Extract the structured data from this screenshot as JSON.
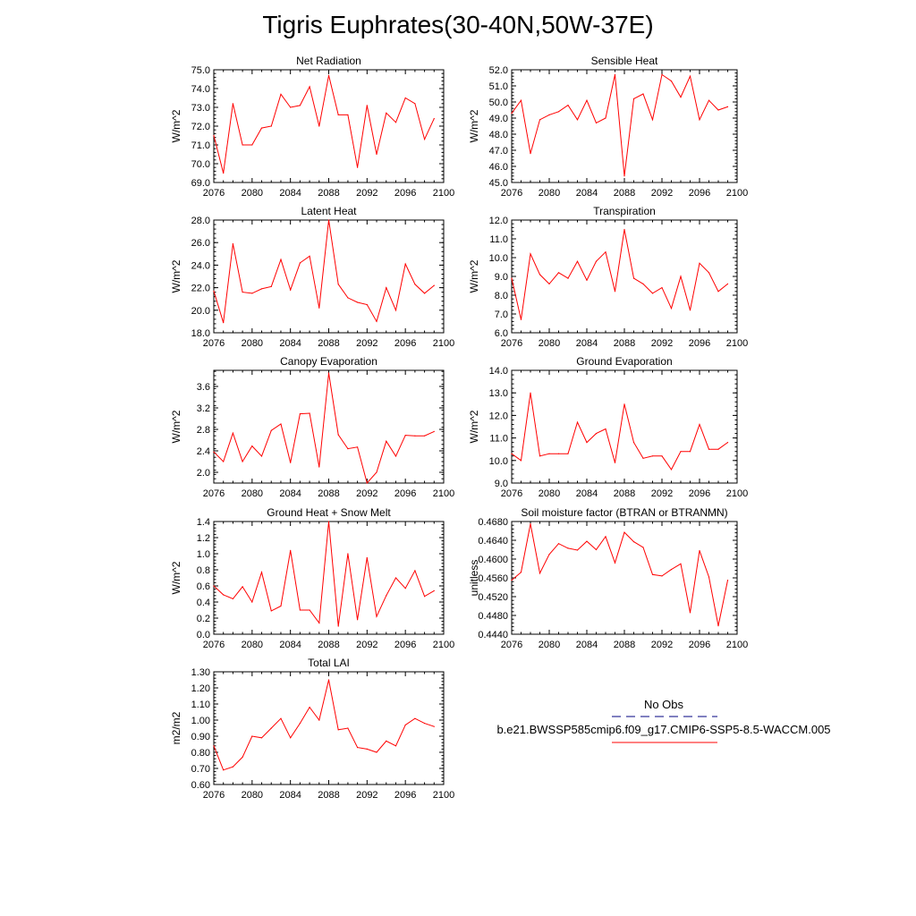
{
  "title": "Tigris Euphrates(30-40N,50W-37E)",
  "colors": {
    "model": "#ff0000",
    "obs": "#000080",
    "axis": "#000000"
  },
  "legend": {
    "obs_label": "No Obs",
    "model_label": "b.e21.BWSSP585cmip6.f09_g17.CMIP6-SSP5-8.5-WACCM.005"
  },
  "chart_data": [
    {
      "type": "line",
      "title": "Net Radiation",
      "ylabel": "W/m^2",
      "xlim": [
        2076,
        2100
      ],
      "ylim": [
        69.0,
        75.0
      ],
      "xticks": [
        2076,
        2080,
        2084,
        2088,
        2092,
        2096,
        2100
      ],
      "yticks": [
        "69.0",
        "70.0",
        "71.0",
        "72.0",
        "73.0",
        "74.0",
        "75.0"
      ],
      "series": [
        {
          "x": [
            2076,
            2077,
            2078,
            2079,
            2080,
            2081,
            2082,
            2083,
            2084,
            2085,
            2086,
            2087,
            2088,
            2089,
            2090,
            2091,
            2092,
            2093,
            2094,
            2095,
            2096,
            2097,
            2098,
            2099
          ],
          "values": [
            71.5,
            69.5,
            73.2,
            71.0,
            71.0,
            71.9,
            72.0,
            73.7,
            73.0,
            73.1,
            74.1,
            72.0,
            74.7,
            72.6,
            72.6,
            69.8,
            73.1,
            70.5,
            72.7,
            72.2,
            73.5,
            73.2,
            71.3,
            72.4
          ]
        }
      ]
    },
    {
      "type": "line",
      "title": "Sensible Heat",
      "ylabel": "W/m^2",
      "xlim": [
        2076,
        2100
      ],
      "ylim": [
        45.0,
        52.0
      ],
      "xticks": [
        2076,
        2080,
        2084,
        2088,
        2092,
        2096,
        2100
      ],
      "yticks": [
        "45.0",
        "46.0",
        "47.0",
        "48.0",
        "49.0",
        "50.0",
        "51.0",
        "52.0"
      ],
      "series": [
        {
          "x": [
            2076,
            2077,
            2078,
            2079,
            2080,
            2081,
            2082,
            2083,
            2084,
            2085,
            2086,
            2087,
            2088,
            2089,
            2090,
            2091,
            2092,
            2093,
            2094,
            2095,
            2096,
            2097,
            2098,
            2099
          ],
          "values": [
            49.3,
            50.1,
            46.8,
            48.9,
            49.2,
            49.4,
            49.8,
            48.9,
            50.1,
            48.7,
            49.0,
            51.7,
            45.4,
            50.2,
            50.5,
            48.9,
            51.7,
            51.3,
            50.3,
            51.6,
            48.9,
            50.1,
            49.5,
            49.7
          ]
        }
      ]
    },
    {
      "type": "line",
      "title": "Latent Heat",
      "ylabel": "W/m^2",
      "xlim": [
        2076,
        2100
      ],
      "ylim": [
        18.0,
        28.0
      ],
      "xticks": [
        2076,
        2080,
        2084,
        2088,
        2092,
        2096,
        2100
      ],
      "yticks": [
        "18.0",
        "20.0",
        "22.0",
        "24.0",
        "26.0",
        "28.0"
      ],
      "series": [
        {
          "x": [
            2076,
            2077,
            2078,
            2079,
            2080,
            2081,
            2082,
            2083,
            2084,
            2085,
            2086,
            2087,
            2088,
            2089,
            2090,
            2091,
            2092,
            2093,
            2094,
            2095,
            2096,
            2097,
            2098,
            2099
          ],
          "values": [
            21.7,
            18.9,
            25.9,
            21.6,
            21.5,
            21.9,
            22.1,
            24.5,
            21.8,
            24.2,
            24.8,
            20.2,
            28.0,
            22.3,
            21.1,
            20.7,
            20.5,
            19.0,
            22.0,
            20.0,
            24.1,
            22.3,
            21.5,
            22.2
          ]
        }
      ]
    },
    {
      "type": "line",
      "title": "Transpiration",
      "ylabel": "W/m^2",
      "xlim": [
        2076,
        2100
      ],
      "ylim": [
        6.0,
        12.0
      ],
      "xticks": [
        2076,
        2080,
        2084,
        2088,
        2092,
        2096,
        2100
      ],
      "yticks": [
        "6.0",
        "7.0",
        "8.0",
        "9.0",
        "10.0",
        "11.0",
        "12.0"
      ],
      "series": [
        {
          "x": [
            2076,
            2077,
            2078,
            2079,
            2080,
            2081,
            2082,
            2083,
            2084,
            2085,
            2086,
            2087,
            2088,
            2089,
            2090,
            2091,
            2092,
            2093,
            2094,
            2095,
            2096,
            2097,
            2098,
            2099
          ],
          "values": [
            8.9,
            6.7,
            10.2,
            9.1,
            8.6,
            9.2,
            8.9,
            9.8,
            8.8,
            9.8,
            10.3,
            8.2,
            11.5,
            8.9,
            8.6,
            8.1,
            8.4,
            7.3,
            9.0,
            7.2,
            9.7,
            9.2,
            8.2,
            8.6
          ]
        }
      ]
    },
    {
      "type": "line",
      "title": "Canopy Evaporation",
      "ylabel": "W/m^2",
      "xlim": [
        2076,
        2100
      ],
      "ylim": [
        1.8,
        3.9
      ],
      "xticks": [
        2076,
        2080,
        2084,
        2088,
        2092,
        2096,
        2100
      ],
      "yticks": [
        "2.0",
        "2.4",
        "2.8",
        "3.2",
        "3.6"
      ],
      "ytick_values": [
        2.0,
        2.4,
        2.8,
        3.2,
        3.6
      ],
      "series": [
        {
          "x": [
            2076,
            2077,
            2078,
            2079,
            2080,
            2081,
            2082,
            2083,
            2084,
            2085,
            2086,
            2087,
            2088,
            2089,
            2090,
            2091,
            2092,
            2093,
            2094,
            2095,
            2096,
            2097,
            2098,
            2099
          ],
          "values": [
            2.38,
            2.2,
            2.73,
            2.2,
            2.49,
            2.3,
            2.78,
            2.9,
            2.18,
            3.09,
            3.1,
            2.1,
            3.85,
            2.7,
            2.44,
            2.47,
            1.8,
            2.0,
            2.58,
            2.3,
            2.69,
            2.68,
            2.68,
            2.76
          ]
        }
      ]
    },
    {
      "type": "line",
      "title": "Ground Evaporation",
      "ylabel": "W/m^2",
      "xlim": [
        2076,
        2100
      ],
      "ylim": [
        9.0,
        14.0
      ],
      "xticks": [
        2076,
        2080,
        2084,
        2088,
        2092,
        2096,
        2100
      ],
      "yticks": [
        "9.0",
        "10.0",
        "11.0",
        "12.0",
        "13.0",
        "14.0"
      ],
      "series": [
        {
          "x": [
            2076,
            2077,
            2078,
            2079,
            2080,
            2081,
            2082,
            2083,
            2084,
            2085,
            2086,
            2087,
            2088,
            2089,
            2090,
            2091,
            2092,
            2093,
            2094,
            2095,
            2096,
            2097,
            2098,
            2099
          ],
          "values": [
            10.3,
            10.0,
            13.0,
            10.2,
            10.3,
            10.3,
            10.3,
            11.7,
            10.8,
            11.2,
            11.4,
            9.9,
            12.5,
            10.8,
            10.1,
            10.2,
            10.2,
            9.6,
            10.4,
            10.4,
            11.6,
            10.5,
            10.5,
            10.8
          ]
        }
      ]
    },
    {
      "type": "line",
      "title": "Ground Heat + Snow Melt",
      "ylabel": "W/m^2",
      "xlim": [
        2076,
        2100
      ],
      "ylim": [
        0.0,
        1.4
      ],
      "xticks": [
        2076,
        2080,
        2084,
        2088,
        2092,
        2096,
        2100
      ],
      "yticks": [
        "0.0",
        "0.2",
        "0.4",
        "0.6",
        "0.8",
        "1.0",
        "1.2",
        "1.4"
      ],
      "series": [
        {
          "x": [
            2076,
            2077,
            2078,
            2079,
            2080,
            2081,
            2082,
            2083,
            2084,
            2085,
            2086,
            2087,
            2088,
            2089,
            2090,
            2091,
            2092,
            2093,
            2094,
            2095,
            2096,
            2097,
            2098,
            2099
          ],
          "values": [
            0.6,
            0.49,
            0.44,
            0.59,
            0.4,
            0.77,
            0.29,
            0.35,
            1.04,
            0.3,
            0.3,
            0.14,
            1.4,
            0.1,
            1.0,
            0.18,
            0.95,
            0.22,
            0.48,
            0.7,
            0.57,
            0.79,
            0.47,
            0.54
          ]
        }
      ]
    },
    {
      "type": "line",
      "title": "Soil moisture factor (BTRAN or BTRANMN)",
      "ylabel": "unitless",
      "xlim": [
        2076,
        2100
      ],
      "ylim": [
        0.444,
        0.468
      ],
      "xticks": [
        2076,
        2080,
        2084,
        2088,
        2092,
        2096,
        2100
      ],
      "yticks": [
        "0.4440",
        "0.4480",
        "0.4520",
        "0.4560",
        "0.4600",
        "0.4640",
        "0.4680"
      ],
      "series": [
        {
          "x": [
            2076,
            2077,
            2078,
            2079,
            2080,
            2081,
            2082,
            2083,
            2084,
            2085,
            2086,
            2087,
            2088,
            2089,
            2090,
            2091,
            2092,
            2093,
            2094,
            2095,
            2096,
            2097,
            2098,
            2099
          ],
          "values": [
            0.4555,
            0.4572,
            0.4675,
            0.457,
            0.461,
            0.4633,
            0.4623,
            0.4619,
            0.4638,
            0.462,
            0.4648,
            0.4592,
            0.4657,
            0.4637,
            0.4625,
            0.4567,
            0.4564,
            0.4578,
            0.459,
            0.4486,
            0.4618,
            0.4562,
            0.4458,
            0.4555
          ]
        }
      ]
    },
    {
      "type": "line",
      "title": "Total LAI",
      "ylabel": "m2/m2",
      "xlim": [
        2076,
        2100
      ],
      "ylim": [
        0.6,
        1.3
      ],
      "xticks": [
        2076,
        2080,
        2084,
        2088,
        2092,
        2096,
        2100
      ],
      "yticks": [
        "0.60",
        "0.70",
        "0.80",
        "0.90",
        "1.00",
        "1.10",
        "1.20",
        "1.30"
      ],
      "series": [
        {
          "x": [
            2076,
            2077,
            2078,
            2079,
            2080,
            2081,
            2082,
            2083,
            2084,
            2085,
            2086,
            2087,
            2088,
            2089,
            2090,
            2091,
            2092,
            2093,
            2094,
            2095,
            2096,
            2097,
            2098,
            2099
          ],
          "values": [
            0.84,
            0.69,
            0.71,
            0.77,
            0.9,
            0.89,
            0.95,
            1.01,
            0.89,
            0.98,
            1.08,
            1.0,
            1.25,
            0.94,
            0.95,
            0.83,
            0.82,
            0.8,
            0.87,
            0.84,
            0.97,
            1.01,
            0.98,
            0.96
          ]
        }
      ]
    }
  ]
}
